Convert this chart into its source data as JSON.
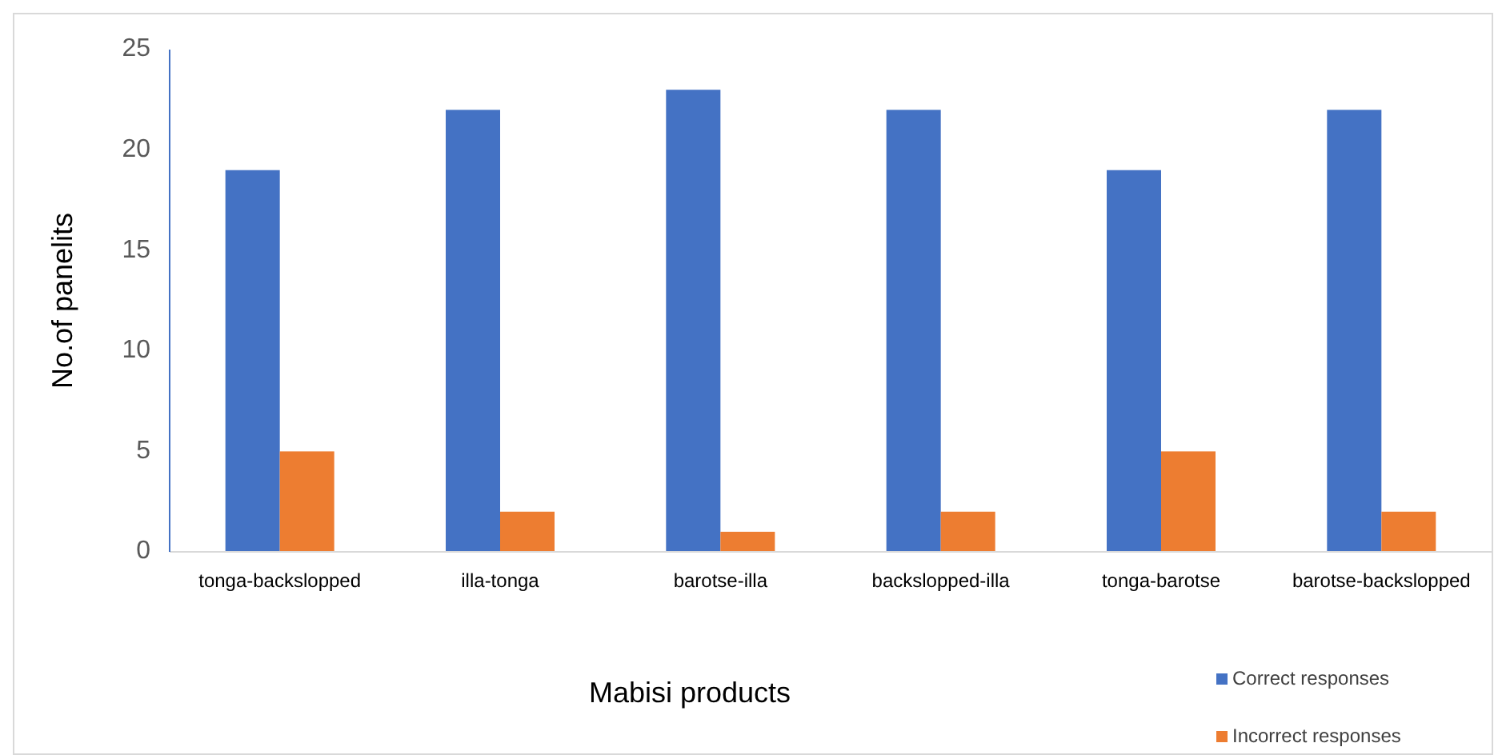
{
  "chart_data": {
    "type": "bar",
    "xlabel": "Mabisi products",
    "ylabel": "No.of panelits",
    "categories": [
      "tonga-backslopped",
      "illa-tonga",
      "barotse-illa",
      "backslopped-illa",
      "tonga-barotse",
      "barotse-backslopped"
    ],
    "series": [
      {
        "name": "Correct responses",
        "color": "#4472c4",
        "values": [
          19,
          22,
          23,
          22,
          19,
          22
        ]
      },
      {
        "name": "Incorrect responses",
        "color": "#ed7d31",
        "values": [
          5,
          2,
          1,
          2,
          5,
          2
        ]
      }
    ],
    "ylim": [
      0,
      25
    ],
    "yticks": [
      0,
      5,
      10,
      15,
      20,
      25
    ],
    "grid": false,
    "legend": "bottom right"
  }
}
